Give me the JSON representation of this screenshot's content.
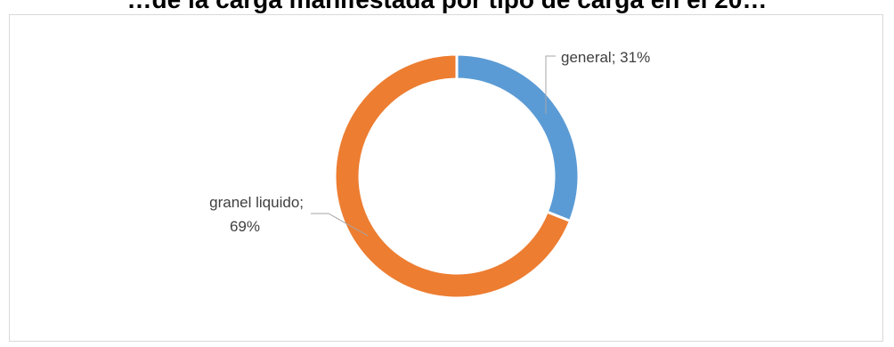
{
  "chart_data": {
    "type": "pie",
    "donut": true,
    "title": "…de la carga manifestada por tipo de carga en el 20…",
    "series": [
      {
        "label": "general",
        "value": 31,
        "color": "#5b9bd5"
      },
      {
        "label": "granel liquido",
        "value": 69,
        "color": "#ed7d31"
      }
    ],
    "labels": {
      "general": {
        "line1": "general; 31%"
      },
      "granel_liquido": {
        "line1": "granel liquido;",
        "line2": "69%"
      }
    },
    "legend": "none"
  }
}
